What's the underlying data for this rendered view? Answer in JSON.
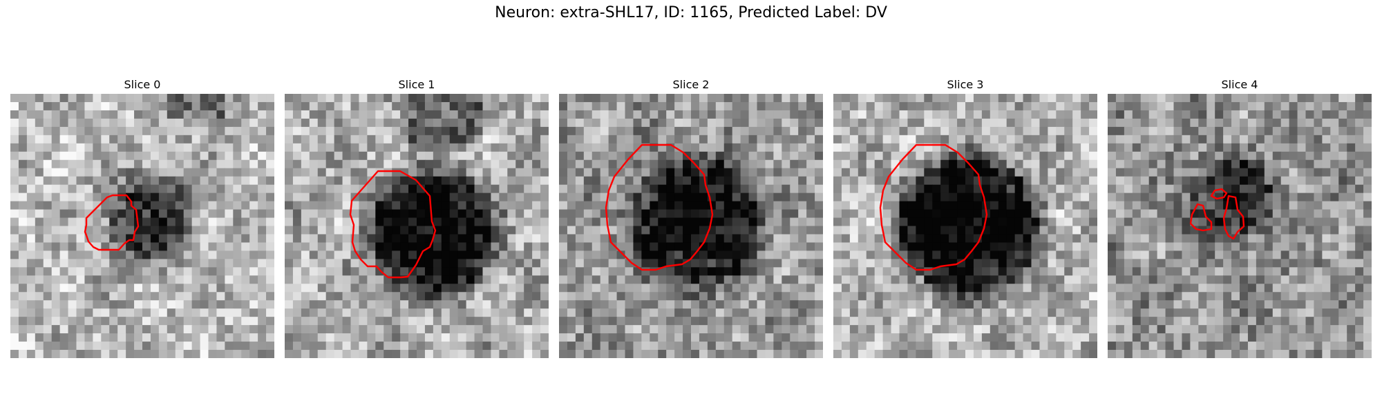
{
  "figure": {
    "title": "Neuron: extra-SHL17, ID: 1165, Predicted Label: DV"
  },
  "panels": [
    {
      "title": "Slice 0"
    },
    {
      "title": "Slice 1"
    },
    {
      "title": "Slice 2"
    },
    {
      "title": "Slice 3"
    },
    {
      "title": "Slice 4"
    }
  ],
  "colors": {
    "contour": "#ff0000",
    "background": "#ffffff"
  }
}
